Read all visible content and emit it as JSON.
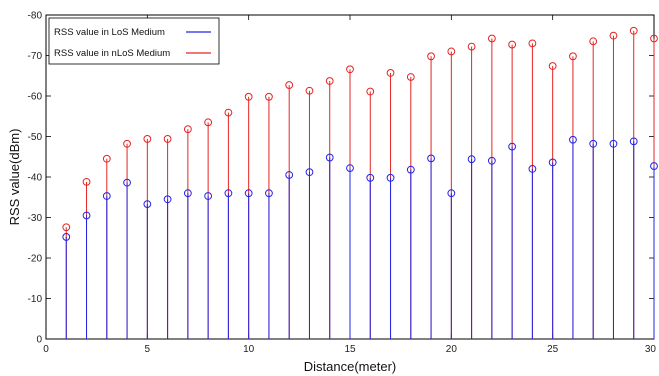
{
  "chart_data": {
    "type": "stem",
    "xlabel": "Distance(meter)",
    "ylabel": "RSS value(dBm)",
    "xlim": [
      0,
      30
    ],
    "ylim": [
      0,
      -80
    ],
    "y_axis_reversed": true,
    "x_ticks": [
      "0",
      "5",
      "10",
      "15",
      "20",
      "25",
      "30"
    ],
    "y_ticks": [
      "0",
      "-10",
      "-20",
      "-30",
      "-40",
      "-50",
      "-60",
      "-70",
      "-80"
    ],
    "grid": false,
    "legend_position": "top-left",
    "x": [
      1,
      2,
      3,
      4,
      5,
      6,
      7,
      8,
      9,
      10,
      11,
      12,
      13,
      14,
      15,
      16,
      17,
      18,
      19,
      20,
      21,
      22,
      23,
      24,
      25,
      26,
      27,
      28,
      29,
      30
    ],
    "series": [
      {
        "name": "RSS value in LoS Medium",
        "color": "#2424e6",
        "values": [
          -25.2,
          -30.5,
          -35.3,
          -38.6,
          -33.3,
          -34.5,
          -36.0,
          -35.3,
          -36.0,
          -36.0,
          -36.0,
          -40.5,
          -41.2,
          -44.8,
          -42.2,
          -39.8,
          -39.8,
          -41.8,
          -44.6,
          -36.0,
          -44.4,
          -44.0,
          -47.5,
          -42.0,
          -43.6,
          -49.2,
          -48.2,
          -48.2,
          -48.8,
          -42.7
        ]
      },
      {
        "name": "RSS value in nLoS  Medium",
        "color": "#e62424",
        "values": [
          -27.6,
          -38.8,
          -44.5,
          -48.2,
          -49.4,
          -49.4,
          -51.8,
          -53.5,
          -55.9,
          -59.8,
          -59.8,
          -62.7,
          -61.3,
          -63.7,
          -66.6,
          -61.1,
          -65.7,
          -64.7,
          -69.8,
          -71.0,
          -72.2,
          -74.2,
          -72.7,
          -73.0,
          -67.4,
          -69.8,
          -73.5,
          -74.9,
          -76.1,
          -74.2
        ]
      }
    ]
  }
}
